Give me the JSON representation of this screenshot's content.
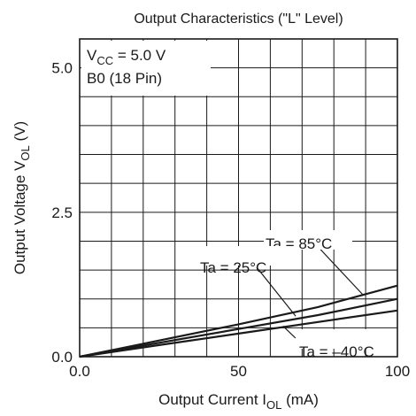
{
  "chart_data": {
    "type": "line",
    "title": "Output Characteristics  (\"L\" Level)",
    "xlabel": {
      "main": "Output Current  I",
      "sub": "OL",
      "unit": "  (mA)"
    },
    "ylabel": {
      "main": "Output Voltage  V",
      "sub": "OL",
      "unit": "  (V)"
    },
    "xlim": [
      0,
      100
    ],
    "ylim": [
      0,
      5.5
    ],
    "x_ticks": [
      {
        "value": 0,
        "label": "0.0"
      },
      {
        "value": 50,
        "label": "50"
      },
      {
        "value": 100,
        "label": "100"
      }
    ],
    "y_ticks": [
      {
        "value": 0,
        "label": "0.0"
      },
      {
        "value": 2.5,
        "label": "2.5"
      },
      {
        "value": 5,
        "label": "5.0"
      }
    ],
    "x_grid_step": 10,
    "y_grid_step": 0.5,
    "grid": true,
    "conditions": {
      "vcc": {
        "main": "V",
        "sub": "CC",
        "rest": " = 5.0 V"
      },
      "pin": "B0 (18 Pin)"
    },
    "series": [
      {
        "name": "Ta = 85°C",
        "x": [
          0,
          25,
          50,
          75,
          100
        ],
        "y": [
          0,
          0.28,
          0.56,
          0.86,
          1.23
        ]
      },
      {
        "name": "Ta = 25°C",
        "x": [
          0,
          25,
          50,
          75,
          100
        ],
        "y": [
          0,
          0.24,
          0.48,
          0.72,
          1.0
        ]
      },
      {
        "name": "Ta = –40°C",
        "x": [
          0,
          25,
          50,
          75,
          100
        ],
        "y": [
          0,
          0.2,
          0.4,
          0.6,
          0.8
        ]
      }
    ],
    "colors": {
      "ink": "#1a1a1a",
      "background": "#ffffff"
    }
  }
}
